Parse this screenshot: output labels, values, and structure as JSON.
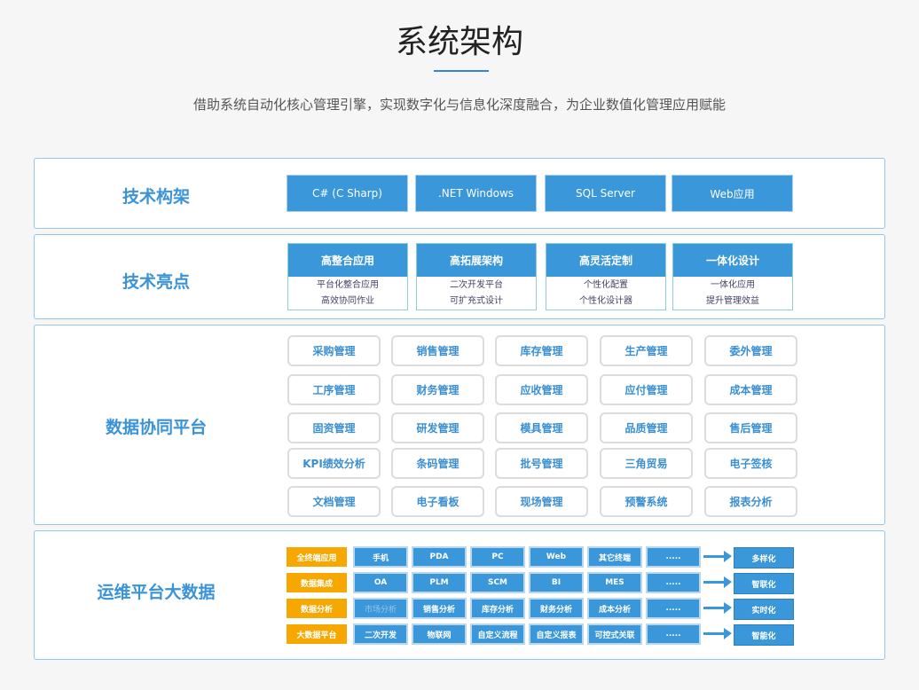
{
  "title": "系统架构",
  "subtitle": "借助系统自动化核心管理引擎，实现数字化与信息化深度融合，为企业数值化管理应用赋能",
  "tech_framework": {
    "label": "技术构架",
    "items": [
      "C#  (C Sharp)",
      ".NET Windows",
      "SQL Server",
      "Web应用"
    ]
  },
  "tech_highlights": {
    "label": "技术亮点",
    "cards": [
      {
        "title": "高整合应用",
        "lines": [
          "平台化整合应用",
          "高效协同作业"
        ]
      },
      {
        "title": "高拓展架构",
        "lines": [
          "二次开发平台",
          "可扩充式设计"
        ]
      },
      {
        "title": "高灵活定制",
        "lines": [
          "个性化配置",
          "个性化设计器"
        ]
      },
      {
        "title": "一体化设计",
        "lines": [
          "一体化应用",
          "提升管理效益"
        ]
      }
    ]
  },
  "data_platform": {
    "label": "数据协同平台",
    "modules": [
      "采购管理",
      "销售管理",
      "库存管理",
      "生产管理",
      "委外管理",
      "工序管理",
      "财务管理",
      "应收管理",
      "应付管理",
      "成本管理",
      "固资管理",
      "研发管理",
      "模具管理",
      "品质管理",
      "售后管理",
      "KPI绩效分析",
      "条码管理",
      "批号管理",
      "三角贸易",
      "电子签核",
      "文档管理",
      "电子看板",
      "现场管理",
      "预警系统",
      "报表分析"
    ]
  },
  "ops_platform": {
    "label": "运维平台大数据",
    "rows": [
      {
        "category": "全终端应用",
        "items": [
          "手机",
          "PDA",
          "PC",
          "Web",
          "其它终端",
          "....."
        ],
        "result": "多样化"
      },
      {
        "category": "数据集成",
        "items": [
          "OA",
          "PLM",
          "SCM",
          "BI",
          "MES",
          "....."
        ],
        "result": "智联化"
      },
      {
        "category": "数据分析",
        "items": [
          "市场分析",
          "销售分析",
          "库存分析",
          "财务分析",
          "成本分析",
          "....."
        ],
        "result": "实时化"
      },
      {
        "category": "大数据平台",
        "items": [
          "二次开发",
          "物联网",
          "自定义流程",
          "自定义报表",
          "可控式关联",
          "....."
        ],
        "result": "智能化"
      }
    ]
  },
  "colors": {
    "accent": "#3a97d9",
    "orange": "#f7a800"
  }
}
